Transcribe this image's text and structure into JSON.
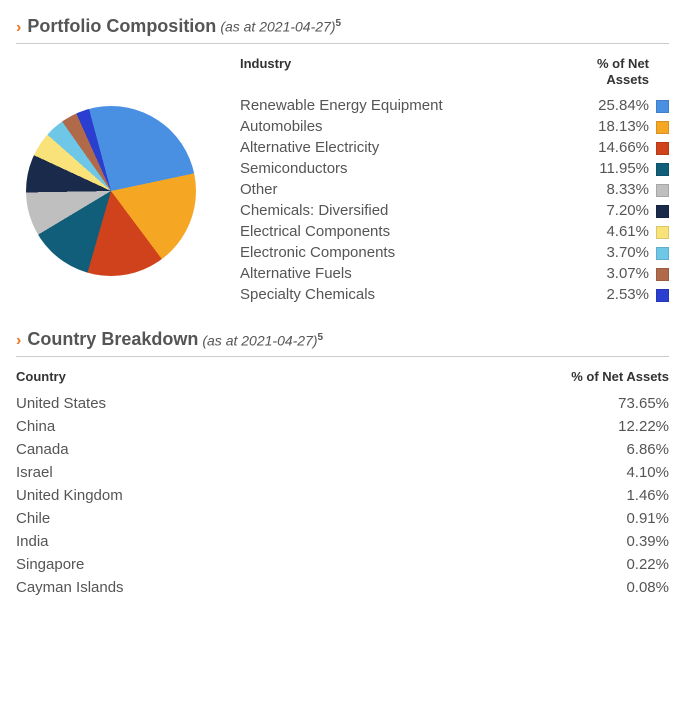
{
  "composition": {
    "title": "Portfolio Composition",
    "as_at": "(as at 2021-04-27)",
    "footnote": "5",
    "header_industry": "Industry",
    "header_pct": "% of Net Assets",
    "pie": {
      "type": "pie",
      "background_color": "#ffffff"
    },
    "rows": [
      {
        "label": "Renewable Energy Equipment",
        "pct": "25.84%",
        "value": 25.84,
        "color": "#4a90e2"
      },
      {
        "label": "Automobiles",
        "pct": "18.13%",
        "value": 18.13,
        "color": "#f5a623"
      },
      {
        "label": "Alternative Electricity",
        "pct": "14.66%",
        "value": 14.66,
        "color": "#d0421b"
      },
      {
        "label": "Semiconductors",
        "pct": "11.95%",
        "value": 11.95,
        "color": "#115e7a"
      },
      {
        "label": "Other",
        "pct": "8.33%",
        "value": 8.33,
        "color": "#bfbfbf"
      },
      {
        "label": "Chemicals: Diversified",
        "pct": "7.20%",
        "value": 7.2,
        "color": "#1a2a4a"
      },
      {
        "label": "Electrical Components",
        "pct": "4.61%",
        "value": 4.61,
        "color": "#f9e27a"
      },
      {
        "label": "Electronic Components",
        "pct": "3.70%",
        "value": 3.7,
        "color": "#6fc7e8"
      },
      {
        "label": "Alternative Fuels",
        "pct": "3.07%",
        "value": 3.07,
        "color": "#b06a4a"
      },
      {
        "label": "Specialty Chemicals",
        "pct": "2.53%",
        "value": 2.53,
        "color": "#2a3fd0"
      }
    ]
  },
  "countries": {
    "title": "Country Breakdown",
    "as_at": "(as at 2021-04-27)",
    "footnote": "5",
    "header_country": "Country",
    "header_pct": "% of Net Assets",
    "rows": [
      {
        "label": "United States",
        "pct": "73.65%"
      },
      {
        "label": "China",
        "pct": "12.22%"
      },
      {
        "label": "Canada",
        "pct": "6.86%"
      },
      {
        "label": "Israel",
        "pct": "4.10%"
      },
      {
        "label": "United Kingdom",
        "pct": "1.46%"
      },
      {
        "label": "Chile",
        "pct": "0.91%"
      },
      {
        "label": "India",
        "pct": "0.39%"
      },
      {
        "label": "Singapore",
        "pct": "0.22%"
      },
      {
        "label": "Cayman Islands",
        "pct": "0.08%"
      }
    ]
  }
}
